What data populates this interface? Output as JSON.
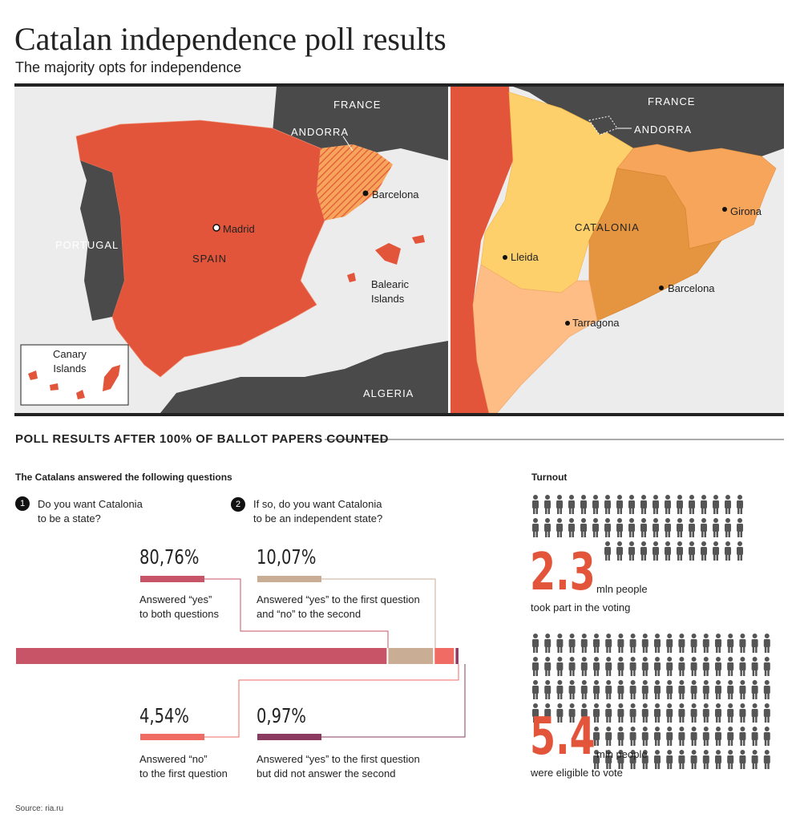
{
  "header": {
    "title": "Catalan independence poll results",
    "subtitle": "The majority opts for independence"
  },
  "spain_map": {
    "france": "FRANCE",
    "andorra": "ANDORRA",
    "barcelona": "Barcelona",
    "madrid": "Madrid",
    "spain": "SPAIN",
    "portugal": "PORTUGAL",
    "balearic": "Balearic\nIslands",
    "canary": "Canary\nIslands",
    "algeria": "ALGERIA"
  },
  "catalonia_map": {
    "france": "FRANCE",
    "andorra": "ANDORRA",
    "catalonia": "CATALONIA",
    "girona": "Girona",
    "lleida": "Lleida",
    "barcelona": "Barcelona",
    "tarragona": "Tarragona"
  },
  "section_title": "POLL RESULTS AFTER 100% OF BALLOT PAPERS COUNTED",
  "questions": {
    "heading": "The Catalans answered the following questions",
    "items": [
      {
        "number": "1",
        "text": "Do you want Catalonia\nto be a state?"
      },
      {
        "number": "2",
        "text": "If so, do you want Catalonia\nto be an independent state?"
      }
    ]
  },
  "results": {
    "values": [
      80.76,
      10.07,
      4.54,
      0.97
    ],
    "value_labels": [
      "80,76%",
      "10,07%",
      "4,54%",
      "0,97%"
    ],
    "descriptions": [
      "Answered “yes”\nto both questions",
      "Answered “yes” to the first question\nand “no” to the second",
      "Answered “no”\nto the first question",
      "Answered “yes” to the first question\nbut did not answer the second"
    ],
    "colors": [
      "#c75467",
      "#c9ae95",
      "#ef6b64",
      "#8a3b5f"
    ]
  },
  "turnout": {
    "heading": "Turnout",
    "took_part": {
      "number": "2.3",
      "unit": "mln people",
      "text": "took part in the voting"
    },
    "eligible": {
      "number": "5.4",
      "unit": "mln people",
      "text": "were eligible to vote"
    }
  },
  "source": "Source: ria.ru"
}
